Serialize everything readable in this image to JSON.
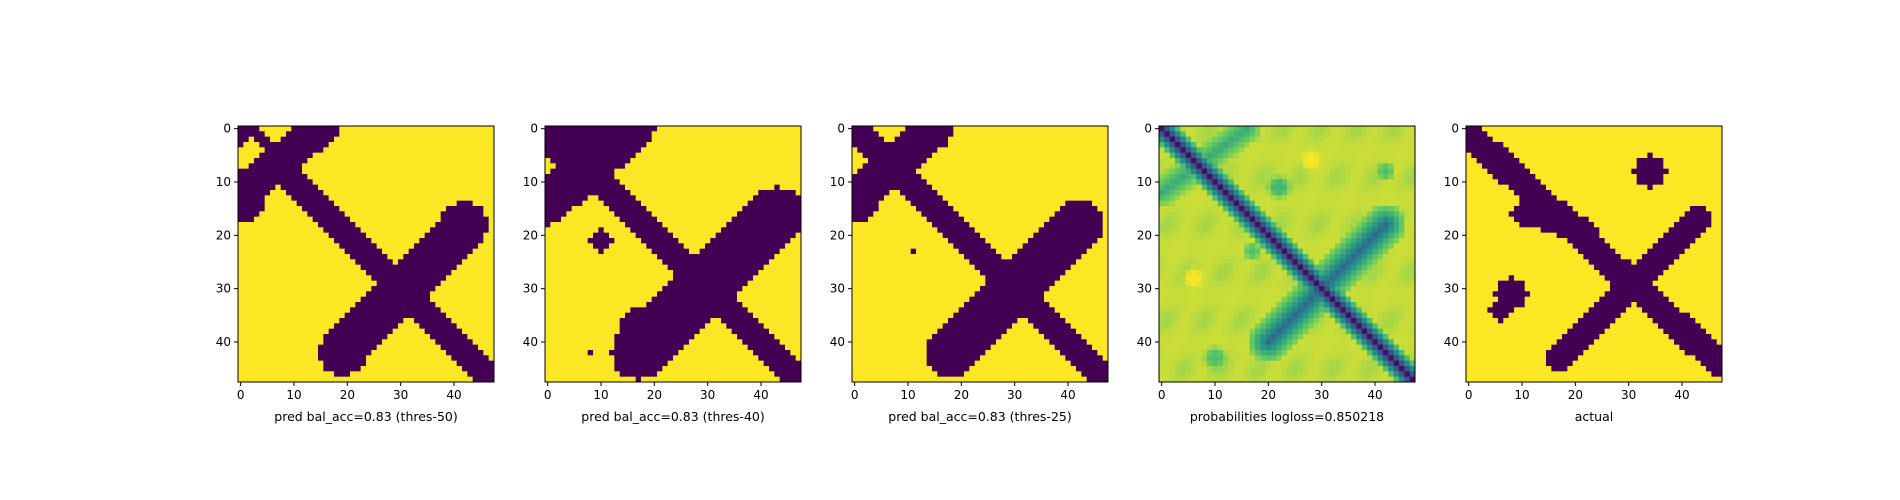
{
  "chart_data": [
    {
      "type": "heatmap",
      "xlabel": "pred bal_acc=0.83 (thres-50)",
      "colormap": "binary",
      "grid_size": 48,
      "x_ticks": [
        0,
        10,
        20,
        30,
        40
      ],
      "y_ticks": [
        0,
        10,
        20,
        30,
        40
      ],
      "background_value": 1,
      "bands": [
        {
          "from": [
            0,
            0
          ],
          "to": [
            47,
            47
          ],
          "half_width": 2.2,
          "value": 0
        },
        {
          "from": [
            42,
            18
          ],
          "to": [
            19,
            42
          ],
          "half_width": 4.3,
          "value": 0
        },
        {
          "from": [
            15,
            0
          ],
          "to": [
            0,
            12
          ],
          "half_width": 3.2,
          "value": 0
        }
      ],
      "blobs": [
        {
          "cx": 2,
          "cy": 4,
          "r": 2.2,
          "value": 1
        },
        {
          "cx": 1,
          "cy": 14,
          "r": 3.2,
          "value": 0
        }
      ]
    },
    {
      "type": "heatmap",
      "xlabel": "pred bal_acc=0.83 (thres-40)",
      "colormap": "binary",
      "grid_size": 48,
      "x_ticks": [
        0,
        10,
        20,
        30,
        40
      ],
      "y_ticks": [
        0,
        10,
        20,
        30,
        40
      ],
      "background_value": 1,
      "bands": [
        {
          "from": [
            0,
            0
          ],
          "to": [
            47,
            47
          ],
          "half_width": 2.4,
          "value": 0
        },
        {
          "from": [
            43,
            16
          ],
          "to": [
            17,
            42
          ],
          "half_width": 5.0,
          "value": 0
        },
        {
          "from": [
            16,
            0
          ],
          "to": [
            0,
            14
          ],
          "half_width": 4.0,
          "value": 0
        }
      ],
      "blobs": [
        {
          "cx": 5,
          "cy": 3,
          "r": 5.5,
          "value": 0
        },
        {
          "cx": 10,
          "cy": 21,
          "r": 2.0,
          "value": 0
        },
        {
          "cx": 17,
          "cy": 37,
          "r": 3.5,
          "value": 0
        },
        {
          "cx": 8,
          "cy": 42,
          "r": 0.7,
          "value": 0
        },
        {
          "cx": 47,
          "cy": 16,
          "r": 0.8,
          "value": 0
        }
      ]
    },
    {
      "type": "heatmap",
      "xlabel": "pred bal_acc=0.83 (thres-25)",
      "colormap": "binary",
      "grid_size": 48,
      "x_ticks": [
        0,
        10,
        20,
        30,
        40
      ],
      "y_ticks": [
        0,
        10,
        20,
        30,
        40
      ],
      "background_value": 1,
      "bands": [
        {
          "from": [
            0,
            0
          ],
          "to": [
            47,
            47
          ],
          "half_width": 2.3,
          "value": 0
        },
        {
          "from": [
            42,
            18
          ],
          "to": [
            18,
            42
          ],
          "half_width": 4.6,
          "value": 0
        },
        {
          "from": [
            15,
            0
          ],
          "to": [
            0,
            13
          ],
          "half_width": 3.6,
          "value": 0
        }
      ],
      "blobs": [
        {
          "cx": 1,
          "cy": 14,
          "r": 3.5,
          "value": 0
        },
        {
          "cx": 11,
          "cy": 12,
          "r": 0.6,
          "value": 0
        },
        {
          "cx": 11,
          "cy": 23,
          "r": 0.6,
          "value": 0
        }
      ]
    },
    {
      "type": "heatmap",
      "xlabel": "probabilities logloss=0.850218",
      "colormap": "viridis",
      "grid_size": 48,
      "x_ticks": [
        0,
        10,
        20,
        30,
        40
      ],
      "y_ticks": [
        0,
        10,
        20,
        30,
        40
      ],
      "background_value": 0.92,
      "bands": [
        {
          "from": [
            0,
            0
          ],
          "to": [
            47,
            47
          ],
          "half_width": 2.6,
          "value": 0.05
        },
        {
          "from": [
            42,
            18
          ],
          "to": [
            20,
            40
          ],
          "half_width": 4.0,
          "value": 0.35
        },
        {
          "from": [
            16,
            0
          ],
          "to": [
            0,
            12
          ],
          "half_width": 3.0,
          "value": 0.6
        }
      ],
      "blobs": [
        {
          "cx": 28,
          "cy": 6,
          "r": 2.3,
          "value": 1.0
        },
        {
          "cx": 6,
          "cy": 28,
          "r": 2.3,
          "value": 1.0
        },
        {
          "cx": 22,
          "cy": 11,
          "r": 2.5,
          "value": 0.65
        },
        {
          "cx": 42,
          "cy": 8,
          "r": 2.0,
          "value": 0.7
        },
        {
          "cx": 10,
          "cy": 43,
          "r": 2.5,
          "value": 0.7
        },
        {
          "cx": 17,
          "cy": 23,
          "r": 2.0,
          "value": 0.7
        }
      ]
    },
    {
      "type": "heatmap",
      "xlabel": "actual",
      "colormap": "binary",
      "grid_size": 48,
      "x_ticks": [
        0,
        10,
        20,
        30,
        40
      ],
      "y_ticks": [
        0,
        10,
        20,
        30,
        40
      ],
      "background_value": 1,
      "bands": [
        {
          "from": [
            0,
            1
          ],
          "to": [
            47,
            44
          ],
          "half_width": 2.6,
          "value": 0
        },
        {
          "from": [
            43,
            17
          ],
          "to": [
            17,
            43
          ],
          "half_width": 2.8,
          "value": 0
        },
        {
          "from": [
            10,
            16
          ],
          "to": [
            22,
            19
          ],
          "half_width": 2.0,
          "value": 0
        }
      ],
      "blobs": [
        {
          "cx": 34,
          "cy": 8,
          "r": 3.0,
          "value": 0
        },
        {
          "cx": 8,
          "cy": 31,
          "r": 3.0,
          "value": 0
        },
        {
          "cx": 6,
          "cy": 34,
          "r": 2.0,
          "value": 0
        }
      ]
    }
  ]
}
